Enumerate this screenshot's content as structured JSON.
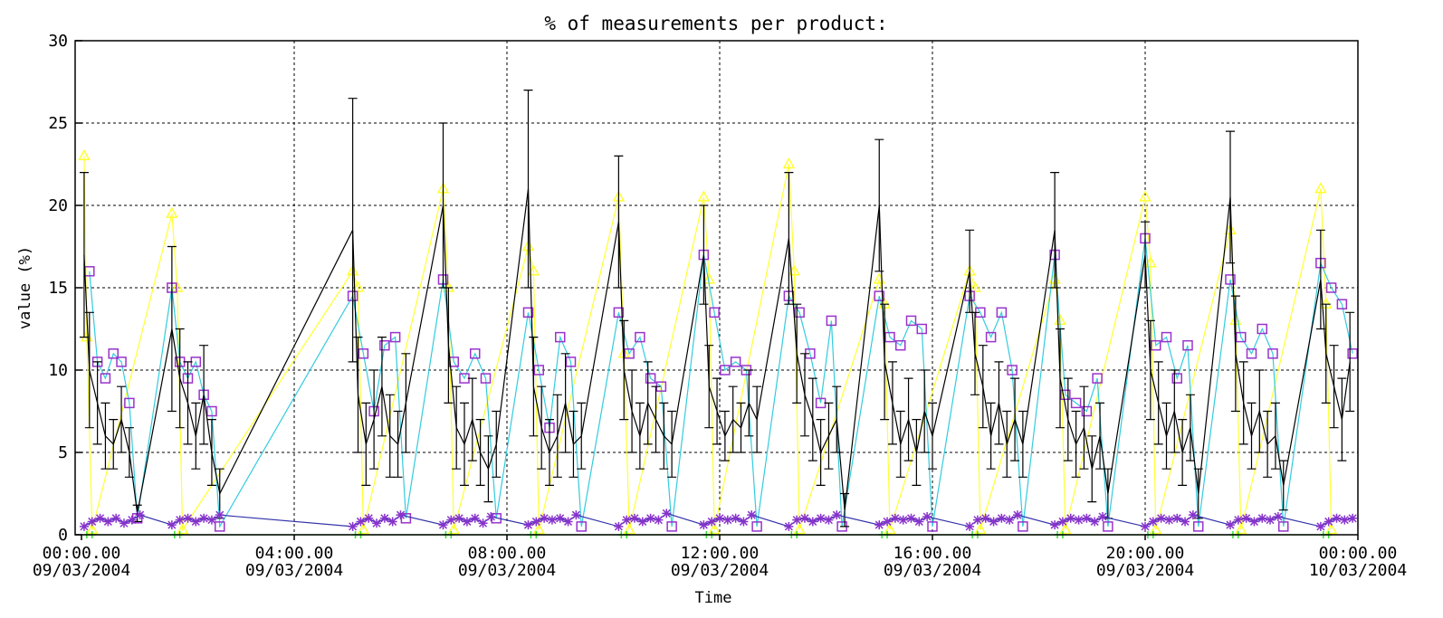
{
  "chart_data": {
    "type": "line",
    "title": "% of measurements per product:",
    "xlabel": "Time",
    "ylabel": "value (%)",
    "ylim": [
      0,
      30
    ],
    "xlim": [
      0,
      24
    ],
    "yticks": [
      "0",
      "5",
      "10",
      "15",
      "20",
      "25",
      "30"
    ],
    "xticks": [
      {
        "x": 0,
        "time": "00:00.00",
        "date": "09/03/2004"
      },
      {
        "x": 4,
        "time": "04:00.00",
        "date": "09/03/2004"
      },
      {
        "x": 8,
        "time": "08:00.00",
        "date": "09/03/2004"
      },
      {
        "x": 12,
        "time": "12:00.00",
        "date": "09/03/2004"
      },
      {
        "x": 16,
        "time": "16:00.00",
        "date": "09/03/2004"
      },
      {
        "x": 20,
        "time": "20:00.00",
        "date": "09/03/2004"
      },
      {
        "x": 24,
        "time": "00:00.00",
        "date": "10/03/2004"
      }
    ],
    "grid": true,
    "series": [
      {
        "color": "#ffff33",
        "marker": "triangle",
        "x": [
          0.05,
          0.1,
          0.2,
          1.7,
          1.8,
          1.9,
          5.1,
          5.2,
          5.3,
          6.8,
          6.9,
          7.0,
          8.4,
          8.5,
          8.6,
          10.1,
          10.2,
          10.3,
          11.7,
          11.8,
          11.9,
          13.3,
          13.4,
          13.5,
          15.0,
          15.1,
          15.2,
          16.7,
          16.8,
          16.9,
          18.3,
          18.4,
          18.5,
          20.0,
          20.1,
          20.2,
          21.6,
          21.7,
          21.8,
          23.3,
          23.4,
          23.5
        ],
        "y": [
          23.0,
          12.0,
          0.3,
          19.5,
          15.0,
          0.3,
          16.0,
          15.0,
          0.3,
          21.0,
          15.0,
          0.3,
          17.5,
          16.0,
          0.3,
          20.5,
          11.0,
          0.3,
          20.5,
          15.5,
          0.3,
          22.5,
          16.0,
          0.3,
          15.5,
          14.0,
          0.3,
          16.0,
          15.0,
          0.3,
          15.5,
          13.0,
          0.3,
          20.5,
          16.5,
          0.3,
          18.5,
          13.0,
          0.3,
          21.0,
          14.0,
          0.3
        ]
      },
      {
        "color": "#33ccdd",
        "marker": "square",
        "x": [
          0.15,
          0.3,
          0.45,
          0.6,
          0.75,
          0.9,
          1.05,
          1.7,
          1.85,
          2.0,
          2.15,
          2.3,
          2.45,
          2.6,
          5.1,
          5.3,
          5.5,
          5.7,
          5.9,
          6.1,
          6.8,
          7.0,
          7.2,
          7.4,
          7.6,
          7.8,
          8.4,
          8.6,
          8.8,
          9.0,
          9.2,
          9.4,
          10.1,
          10.3,
          10.5,
          10.7,
          10.9,
          11.1,
          11.7,
          11.9,
          12.1,
          12.3,
          12.5,
          12.7,
          13.3,
          13.5,
          13.7,
          13.9,
          14.1,
          14.3,
          15.0,
          15.2,
          15.4,
          15.6,
          15.8,
          16.0,
          16.7,
          16.9,
          17.1,
          17.3,
          17.5,
          17.7,
          18.3,
          18.5,
          18.7,
          18.9,
          19.1,
          19.3,
          20.0,
          20.2,
          20.4,
          20.6,
          20.8,
          21.0,
          21.6,
          21.8,
          22.0,
          22.2,
          22.4,
          22.6,
          23.3,
          23.5,
          23.7,
          23.9
        ],
        "y": [
          16.0,
          10.5,
          9.5,
          11.0,
          10.5,
          8.0,
          1.0,
          15.0,
          10.5,
          9.5,
          10.5,
          8.5,
          7.5,
          0.5,
          14.5,
          11.0,
          7.5,
          11.5,
          12.0,
          1.0,
          15.5,
          10.5,
          9.5,
          11.0,
          9.5,
          1.0,
          13.5,
          10.0,
          6.5,
          12.0,
          10.5,
          0.5,
          13.5,
          11.0,
          12.0,
          9.5,
          9.0,
          0.5,
          17.0,
          13.5,
          10.0,
          10.5,
          10.0,
          0.5,
          14.5,
          13.5,
          11.0,
          8.0,
          13.0,
          0.5,
          14.5,
          12.0,
          11.5,
          13.0,
          12.5,
          0.5,
          14.5,
          13.5,
          12.0,
          13.5,
          10.0,
          0.5,
          17.0,
          8.5,
          8.0,
          7.5,
          9.5,
          0.5,
          18.0,
          11.5,
          12.0,
          9.5,
          11.5,
          0.5,
          15.5,
          12.0,
          11.0,
          12.5,
          11.0,
          0.5,
          16.5,
          15.0,
          14.0,
          11.0
        ]
      },
      {
        "color": "#000000",
        "marker": "errorbar",
        "x": [
          0.05,
          0.15,
          0.3,
          0.45,
          0.6,
          0.75,
          0.9,
          1.05,
          1.7,
          1.85,
          2.0,
          2.15,
          2.3,
          2.45,
          2.6,
          5.1,
          5.2,
          5.35,
          5.5,
          5.65,
          5.8,
          5.95,
          6.1,
          6.8,
          6.9,
          7.05,
          7.2,
          7.35,
          7.5,
          7.65,
          7.8,
          8.4,
          8.5,
          8.65,
          8.8,
          8.95,
          9.1,
          9.25,
          9.4,
          10.1,
          10.2,
          10.35,
          10.5,
          10.65,
          10.8,
          10.95,
          11.1,
          11.7,
          11.8,
          11.95,
          12.1,
          12.25,
          12.4,
          12.55,
          12.7,
          13.3,
          13.45,
          13.6,
          13.75,
          13.9,
          14.05,
          14.2,
          14.35,
          15.0,
          15.1,
          15.25,
          15.4,
          15.55,
          15.7,
          15.85,
          16.0,
          16.7,
          16.8,
          16.95,
          17.1,
          17.25,
          17.4,
          17.55,
          17.7,
          18.3,
          18.4,
          18.55,
          18.7,
          18.85,
          19.0,
          19.15,
          19.3,
          20.0,
          20.1,
          20.25,
          20.4,
          20.55,
          20.7,
          20.85,
          21.0,
          21.6,
          21.7,
          21.85,
          22.0,
          22.15,
          22.3,
          22.45,
          22.6,
          23.3,
          23.4,
          23.55,
          23.7,
          23.85
        ],
        "y": [
          17.0,
          10.0,
          8.0,
          6.0,
          5.5,
          7.0,
          5.0,
          1.3,
          12.5,
          9.5,
          8.0,
          6.0,
          8.5,
          5.0,
          2.5,
          18.5,
          8.5,
          5.5,
          7.0,
          9.0,
          6.0,
          5.5,
          8.0,
          20.0,
          11.5,
          6.5,
          5.5,
          7.0,
          5.0,
          4.0,
          5.5,
          21.0,
          9.0,
          6.5,
          5.0,
          6.0,
          8.0,
          5.5,
          6.0,
          19.0,
          10.0,
          7.5,
          6.0,
          8.0,
          7.0,
          6.0,
          5.5,
          17.0,
          9.0,
          7.5,
          6.0,
          7.0,
          6.5,
          8.0,
          7.0,
          18.0,
          11.0,
          8.5,
          7.0,
          5.0,
          6.0,
          7.0,
          1.5,
          20.0,
          10.5,
          8.0,
          5.5,
          7.0,
          5.0,
          7.5,
          6.0,
          16.0,
          11.0,
          9.0,
          6.0,
          8.0,
          5.5,
          7.0,
          5.5,
          18.5,
          9.5,
          7.0,
          5.5,
          6.5,
          4.0,
          6.0,
          2.5,
          17.0,
          10.0,
          8.0,
          6.0,
          7.5,
          5.0,
          6.5,
          2.5,
          20.5,
          11.0,
          8.0,
          6.0,
          7.5,
          5.5,
          6.0,
          3.0,
          15.5,
          11.0,
          9.0,
          7.0,
          10.5
        ],
        "err": [
          5.0,
          3.5,
          2.5,
          2.0,
          1.5,
          2.0,
          1.5,
          0.5,
          5.0,
          3.0,
          2.5,
          2.0,
          3.0,
          2.0,
          1.5,
          8.0,
          3.5,
          2.5,
          3.0,
          3.0,
          2.5,
          2.0,
          3.0,
          5.0,
          3.5,
          2.5,
          2.5,
          2.5,
          2.0,
          2.0,
          2.0,
          6.0,
          3.0,
          2.5,
          2.0,
          2.5,
          3.0,
          2.0,
          2.0,
          4.0,
          3.0,
          2.5,
          2.0,
          2.5,
          2.0,
          2.0,
          2.0,
          3.0,
          2.5,
          2.0,
          1.5,
          2.0,
          1.5,
          2.0,
          2.0,
          4.0,
          3.0,
          2.5,
          2.5,
          2.0,
          2.0,
          2.0,
          1.0,
          4.0,
          3.5,
          2.5,
          2.0,
          2.5,
          2.0,
          2.5,
          2.0,
          2.5,
          2.5,
          2.5,
          2.0,
          2.5,
          2.0,
          2.5,
          2.0,
          3.5,
          3.0,
          2.5,
          2.0,
          2.5,
          2.0,
          2.0,
          1.5,
          2.0,
          3.0,
          2.5,
          2.0,
          2.5,
          2.0,
          2.0,
          1.5,
          4.0,
          3.5,
          2.5,
          2.0,
          2.5,
          2.0,
          2.0,
          1.5,
          3.0,
          3.0,
          2.5,
          2.5,
          3.0
        ]
      },
      {
        "color": "#3333aa",
        "marker": "star",
        "x": [
          0.05,
          0.2,
          0.35,
          0.5,
          0.65,
          0.8,
          0.95,
          1.1,
          1.7,
          1.85,
          2.0,
          2.15,
          2.3,
          2.45,
          2.6,
          5.1,
          5.25,
          5.4,
          5.55,
          5.7,
          5.85,
          6.0,
          6.8,
          6.95,
          7.1,
          7.25,
          7.4,
          7.55,
          7.7,
          8.4,
          8.55,
          8.7,
          8.85,
          9.0,
          9.15,
          9.3,
          10.1,
          10.25,
          10.4,
          10.55,
          10.7,
          10.85,
          11.0,
          11.7,
          11.85,
          12.0,
          12.15,
          12.3,
          12.45,
          12.6,
          13.3,
          13.45,
          13.6,
          13.75,
          13.9,
          14.05,
          14.2,
          15.0,
          15.15,
          15.3,
          15.45,
          15.6,
          15.75,
          15.9,
          16.7,
          16.85,
          17.0,
          17.15,
          17.3,
          17.45,
          17.6,
          18.3,
          18.45,
          18.6,
          18.75,
          18.9,
          19.05,
          19.2,
          20.0,
          20.15,
          20.3,
          20.45,
          20.6,
          20.75,
          20.9,
          21.6,
          21.75,
          21.9,
          22.05,
          22.2,
          22.35,
          22.5,
          23.3,
          23.45,
          23.6,
          23.75,
          23.9
        ],
        "y": [
          0.5,
          0.8,
          1.0,
          0.8,
          1.0,
          0.7,
          0.9,
          1.2,
          0.6,
          0.9,
          1.0,
          0.8,
          1.0,
          0.9,
          1.2,
          0.5,
          0.8,
          1.0,
          0.7,
          1.0,
          0.8,
          1.2,
          0.6,
          0.9,
          1.0,
          0.8,
          1.0,
          0.7,
          1.1,
          0.6,
          0.8,
          1.0,
          0.9,
          1.0,
          0.8,
          1.2,
          0.5,
          0.9,
          1.0,
          0.8,
          1.0,
          0.9,
          1.3,
          0.6,
          0.8,
          1.0,
          0.9,
          1.0,
          0.8,
          1.2,
          0.5,
          0.9,
          1.0,
          0.8,
          1.0,
          0.9,
          1.2,
          0.6,
          0.8,
          1.0,
          0.9,
          1.0,
          0.8,
          1.1,
          0.5,
          0.9,
          1.0,
          0.8,
          1.0,
          0.9,
          1.2,
          0.6,
          0.8,
          1.0,
          0.9,
          1.0,
          0.8,
          1.1,
          0.5,
          0.8,
          1.0,
          0.9,
          1.0,
          0.8,
          1.2,
          0.6,
          0.9,
          1.0,
          0.8,
          1.0,
          0.9,
          1.1,
          0.5,
          0.8,
          1.0,
          0.9,
          1.0
        ]
      },
      {
        "color": "#33dd33",
        "marker": "plus",
        "x": [
          0.1,
          0.2,
          1.75,
          1.85,
          5.15,
          5.25,
          6.85,
          6.95,
          8.45,
          8.55,
          10.15,
          10.25,
          11.75,
          11.85,
          13.35,
          13.45,
          15.05,
          15.15,
          16.75,
          16.85,
          18.35,
          18.45,
          20.05,
          20.15,
          21.65,
          21.75,
          23.35,
          23.45
        ],
        "y": [
          0,
          0,
          0,
          0,
          0,
          0,
          0,
          0,
          0,
          0,
          0,
          0,
          0,
          0,
          0,
          0,
          0,
          0,
          0,
          0,
          0,
          0,
          0,
          0,
          0,
          0,
          0,
          0
        ]
      }
    ]
  }
}
